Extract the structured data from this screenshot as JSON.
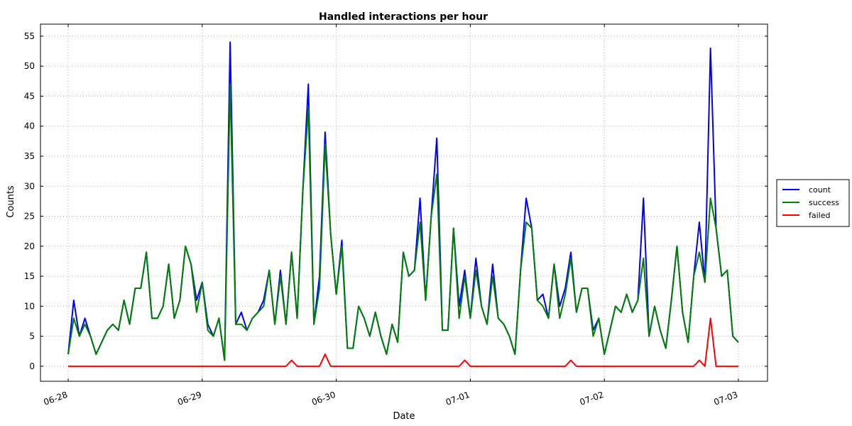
{
  "chart_data": {
    "type": "line",
    "title": "Handled interactions per hour",
    "xlabel": "Date",
    "ylabel": "Counts",
    "ylim": [
      -2.5,
      57
    ],
    "yticks": [
      0,
      5,
      10,
      15,
      20,
      25,
      30,
      35,
      40,
      45,
      50,
      55
    ],
    "xlim": [
      "06-27 20:30",
      "07-03 04:30"
    ],
    "xticks": [
      "06-28",
      "06-29",
      "06-30",
      "07-01",
      "07-02",
      "07-03"
    ],
    "grid": true,
    "legend_position": "right",
    "x_start": "06-28 00:00",
    "x_step_hours": 1,
    "series": [
      {
        "name": "count",
        "color": "#0000ff",
        "values": [
          2,
          11,
          5,
          8,
          5,
          2,
          4,
          6,
          7,
          6,
          11,
          7,
          13,
          13,
          19,
          8,
          8,
          10,
          17,
          8,
          11,
          20,
          17,
          11,
          14,
          7,
          5,
          8,
          1,
          54,
          7,
          9,
          6,
          8,
          9,
          11,
          16,
          7,
          16,
          7,
          19,
          8,
          29,
          47,
          7,
          15,
          39,
          22,
          12,
          21,
          3,
          3,
          10,
          8,
          5,
          9,
          5,
          2,
          7,
          4,
          19,
          15,
          16,
          28,
          11,
          25,
          38,
          6,
          6,
          23,
          10,
          16,
          8,
          18,
          10,
          7,
          17,
          8,
          7,
          5,
          2,
          16,
          28,
          23,
          11,
          12,
          8,
          17,
          10,
          13,
          19,
          9,
          13,
          13,
          6,
          8,
          2,
          6,
          10,
          9,
          12,
          9,
          11,
          28,
          5,
          10,
          6,
          3,
          11,
          20,
          9,
          4,
          15,
          24,
          14,
          53,
          23,
          15,
          16,
          5,
          4
        ]
      },
      {
        "name": "success",
        "color": "#008000",
        "values": [
          2,
          8,
          5,
          7,
          5,
          2,
          4,
          6,
          7,
          6,
          11,
          7,
          13,
          13,
          19,
          8,
          8,
          10,
          17,
          8,
          11,
          20,
          17,
          9,
          14,
          6,
          5,
          8,
          1,
          47,
          7,
          7,
          6,
          8,
          9,
          10,
          16,
          7,
          15,
          7,
          19,
          8,
          29,
          43,
          7,
          13,
          37,
          22,
          12,
          20,
          3,
          3,
          10,
          8,
          5,
          9,
          5,
          2,
          7,
          4,
          19,
          15,
          16,
          24,
          11,
          25,
          32,
          6,
          6,
          23,
          8,
          15,
          8,
          16,
          10,
          7,
          15,
          8,
          7,
          5,
          2,
          16,
          24,
          23,
          11,
          10,
          8,
          17,
          8,
          12,
          18,
          9,
          13,
          13,
          5,
          8,
          2,
          6,
          10,
          9,
          12,
          9,
          11,
          18,
          5,
          10,
          6,
          3,
          11,
          20,
          9,
          4,
          15,
          19,
          14,
          28,
          23,
          15,
          16,
          5,
          4
        ]
      },
      {
        "name": "failed",
        "color": "#ff0000",
        "values": [
          0,
          0,
          0,
          0,
          0,
          0,
          0,
          0,
          0,
          0,
          0,
          0,
          0,
          0,
          0,
          0,
          0,
          0,
          0,
          0,
          0,
          0,
          0,
          0,
          0,
          0,
          0,
          0,
          0,
          0,
          0,
          0,
          0,
          0,
          0,
          0,
          0,
          0,
          0,
          0,
          1,
          0,
          0,
          0,
          0,
          0,
          2,
          0,
          0,
          0,
          0,
          0,
          0,
          0,
          0,
          0,
          0,
          0,
          0,
          0,
          0,
          0,
          0,
          0,
          0,
          0,
          0,
          0,
          0,
          0,
          0,
          1,
          0,
          0,
          0,
          0,
          0,
          0,
          0,
          0,
          0,
          0,
          0,
          0,
          0,
          0,
          0,
          0,
          0,
          0,
          1,
          0,
          0,
          0,
          0,
          0,
          0,
          0,
          0,
          0,
          0,
          0,
          0,
          0,
          0,
          0,
          0,
          0,
          0,
          0,
          0,
          0,
          0,
          1,
          0,
          8,
          0,
          0,
          0,
          0,
          0
        ]
      }
    ]
  }
}
